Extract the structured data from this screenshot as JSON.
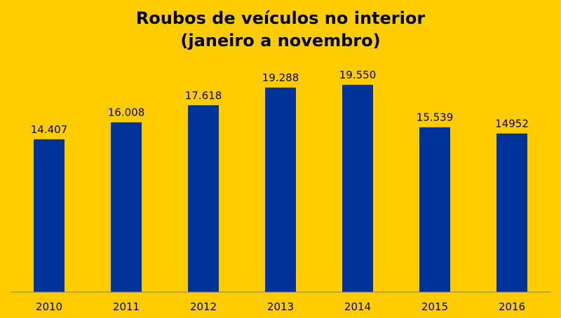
{
  "colors": {
    "background": "#FFCC00",
    "bar": "#003399",
    "axis": "#808080",
    "text": "#000000"
  },
  "chart_data": {
    "type": "bar",
    "title": "Roubos de veículos no interior",
    "subtitle": "(janeiro a novembro)",
    "categories": [
      "2010",
      "2011",
      "2012",
      "2013",
      "2014",
      "2015",
      "2016"
    ],
    "values": [
      14407,
      16008,
      17618,
      19288,
      19550,
      15539,
      14952
    ],
    "data_labels": [
      "14.407",
      "16.008",
      "17.618",
      "19.288",
      "19.550",
      "15.539",
      "14952"
    ],
    "xlabel": "",
    "ylabel": "",
    "ylim": [
      0,
      20000
    ],
    "grid": false,
    "legend": "none"
  }
}
